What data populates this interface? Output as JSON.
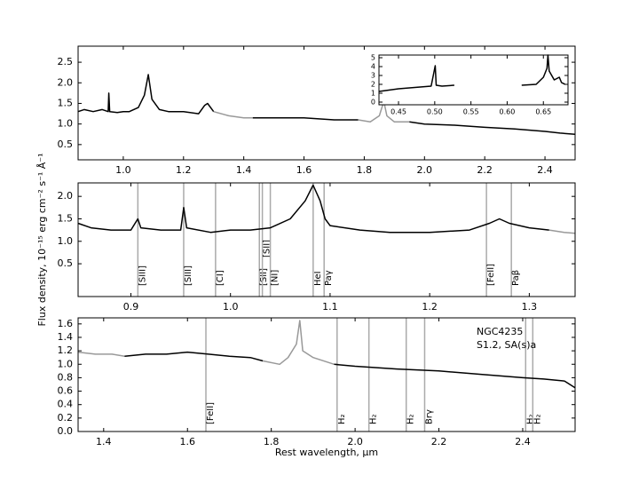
{
  "chart_data": [
    {
      "type": "line",
      "ylabel": "Flux density, 10⁻¹⁵ erg cm⁻² s⁻¹ Å⁻¹",
      "xlim": [
        0.85,
        2.5
      ],
      "ylim": [
        0.13,
        2.89
      ],
      "xticks": [
        {
          "value": 1,
          "label": "1.0"
        },
        1.2,
        1.4,
        1.6,
        1.8,
        {
          "value": 2,
          "label": "2.0"
        },
        2.2,
        2.4
      ],
      "yticks": [
        0.5,
        {
          "value": 1,
          "label": "1.0"
        },
        1.5,
        {
          "value": 2,
          "label": "2.0"
        },
        2.5
      ],
      "series": [
        {
          "color": "#000000",
          "x": [
            0.85,
            0.87,
            0.9,
            0.93,
            0.95,
            0.952,
            0.955,
            0.98,
            1.0,
            1.02,
            1.05,
            1.07,
            1.083,
            1.095,
            1.12,
            1.15,
            1.2,
            1.25,
            1.27,
            1.28,
            1.3
          ],
          "values": [
            1.3,
            1.35,
            1.3,
            1.35,
            1.3,
            1.75,
            1.3,
            1.28,
            1.3,
            1.3,
            1.4,
            1.7,
            2.2,
            1.6,
            1.35,
            1.3,
            1.3,
            1.25,
            1.45,
            1.5,
            1.3
          ]
        },
        {
          "color": "#999999",
          "x": [
            1.3,
            1.35,
            1.4,
            1.43
          ],
          "values": [
            1.3,
            1.2,
            1.15,
            1.15
          ]
        },
        {
          "color": "#000000",
          "x": [
            1.43,
            1.5,
            1.6,
            1.7,
            1.78
          ],
          "values": [
            1.15,
            1.15,
            1.15,
            1.1,
            1.1
          ]
        },
        {
          "color": "#999999",
          "x": [
            1.78,
            1.82,
            1.85,
            1.865,
            1.875,
            1.9,
            1.95
          ],
          "values": [
            1.1,
            1.05,
            1.2,
            1.55,
            1.2,
            1.05,
            1.05
          ]
        },
        {
          "color": "#000000",
          "x": [
            1.95,
            2.0,
            2.1,
            2.2,
            2.3,
            2.4,
            2.45,
            2.5
          ],
          "values": [
            1.05,
            1.0,
            0.97,
            0.92,
            0.88,
            0.82,
            0.78,
            0.75
          ]
        }
      ]
    },
    {
      "type": "line",
      "xlim": [
        0.423,
        0.684
      ],
      "ylim": [
        -0.3,
        5.3
      ],
      "xticks": [
        0.45,
        {
          "value": 0.5,
          "label": "0.50"
        },
        0.55,
        {
          "value": 0.6,
          "label": "0.60"
        },
        0.65
      ],
      "yticks": [
        0,
        1,
        2,
        3,
        4,
        5
      ],
      "series": [
        {
          "color": "#000000",
          "x": [
            0.423,
            0.45,
            0.48,
            0.495,
            0.5007,
            0.502,
            0.51,
            0.527
          ],
          "values": [
            1.2,
            1.5,
            1.7,
            1.8,
            4.1,
            1.9,
            1.8,
            1.9
          ]
        },
        {
          "color": "#000000",
          "x": [
            0.62,
            0.64,
            0.65,
            0.655,
            0.6563,
            0.658,
            0.665,
            0.672,
            0.675,
            0.68
          ],
          "values": [
            1.9,
            2.0,
            2.8,
            3.8,
            5.3,
            3.5,
            2.5,
            2.8,
            2.2,
            2.0
          ]
        }
      ]
    },
    {
      "type": "line",
      "xlim": [
        0.847,
        1.346
      ],
      "ylim": [
        -0.23,
        2.3
      ],
      "xticks": [
        0.9,
        {
          "value": 1,
          "label": "1.0"
        },
        1.1,
        1.2,
        1.3
      ],
      "yticks": [
        0.5,
        {
          "value": 1,
          "label": "1.0"
        },
        1.5,
        {
          "value": 2,
          "label": "2.0"
        }
      ],
      "line_color": "#aaaaaa",
      "lines": [
        {
          "x": 0.907,
          "label": "[SIII]"
        },
        {
          "x": 0.953,
          "label": "[SIII]"
        },
        {
          "x": 0.985,
          "label": "[CI]"
        },
        {
          "x": 1.029,
          "label": "[SII]"
        },
        {
          "x": 1.032,
          "label": "[SII]"
        },
        {
          "x": 1.04,
          "label": "[NI]"
        },
        {
          "x": 1.083,
          "label": "HeI"
        },
        {
          "x": 1.094,
          "label": "Paγ"
        },
        {
          "x": 1.257,
          "label": "[FeII]"
        },
        {
          "x": 1.282,
          "label": "Paβ"
        }
      ],
      "series": [
        {
          "color": "#000000",
          "x": [
            0.847,
            0.86,
            0.88,
            0.9,
            0.907,
            0.91,
            0.93,
            0.95,
            0.953,
            0.956,
            0.98,
            1.0,
            1.02,
            1.04,
            1.06,
            1.075,
            1.083,
            1.09,
            1.095,
            1.1,
            1.13,
            1.16,
            1.2,
            1.24,
            1.26,
            1.27,
            1.28,
            1.3,
            1.32
          ],
          "values": [
            1.4,
            1.3,
            1.25,
            1.25,
            1.5,
            1.3,
            1.25,
            1.25,
            1.75,
            1.3,
            1.2,
            1.25,
            1.25,
            1.3,
            1.5,
            1.9,
            2.25,
            1.9,
            1.5,
            1.35,
            1.25,
            1.2,
            1.2,
            1.25,
            1.4,
            1.5,
            1.4,
            1.3,
            1.25
          ]
        },
        {
          "color": "#999999",
          "x": [
            1.32,
            1.335,
            1.346
          ],
          "values": [
            1.25,
            1.2,
            1.18
          ]
        }
      ]
    },
    {
      "type": "line",
      "xlabel": "Rest wavelength, μm",
      "annotations": [
        "NGC4235",
        "S1.2,  SA(s)a"
      ],
      "xlim": [
        1.339,
        2.525
      ],
      "ylim": [
        0,
        1.69
      ],
      "xticks": [
        1.4,
        1.6,
        1.8,
        {
          "value": 2,
          "label": "2.0"
        },
        2.2,
        2.4
      ],
      "yticks": [
        {
          "value": 0,
          "label": "0.0"
        },
        0.2,
        0.4,
        0.6,
        0.8,
        {
          "value": 1,
          "label": "1.0"
        },
        1.2,
        1.4,
        1.6
      ],
      "line_color": "#aaaaaa",
      "lines": [
        {
          "x": 1.644,
          "label": "[FeII]"
        },
        {
          "x": 1.957,
          "label": "H₂"
        },
        {
          "x": 2.033,
          "label": "H₂"
        },
        {
          "x": 2.122,
          "label": "H₂"
        },
        {
          "x": 2.166,
          "label": "Brγ"
        },
        {
          "x": 2.407,
          "label": "H₂"
        },
        {
          "x": 2.424,
          "label": "H₂"
        }
      ],
      "series": [
        {
          "color": "#999999",
          "x": [
            1.339,
            1.38,
            1.42,
            1.45
          ],
          "values": [
            1.18,
            1.15,
            1.15,
            1.12
          ]
        },
        {
          "color": "#000000",
          "x": [
            1.45,
            1.5,
            1.55,
            1.6,
            1.65,
            1.7,
            1.75,
            1.78
          ],
          "values": [
            1.12,
            1.15,
            1.15,
            1.18,
            1.15,
            1.12,
            1.1,
            1.05
          ]
        },
        {
          "color": "#999999",
          "x": [
            1.78,
            1.82,
            1.84,
            1.86,
            1.868,
            1.875,
            1.9,
            1.95
          ],
          "values": [
            1.05,
            1.0,
            1.1,
            1.3,
            1.65,
            1.2,
            1.1,
            1.0
          ]
        },
        {
          "color": "#000000",
          "x": [
            1.95,
            2.0,
            2.1,
            2.2,
            2.3,
            2.4,
            2.45,
            2.5,
            2.525
          ],
          "values": [
            1.0,
            0.97,
            0.93,
            0.9,
            0.85,
            0.8,
            0.78,
            0.75,
            0.65
          ]
        }
      ]
    }
  ]
}
